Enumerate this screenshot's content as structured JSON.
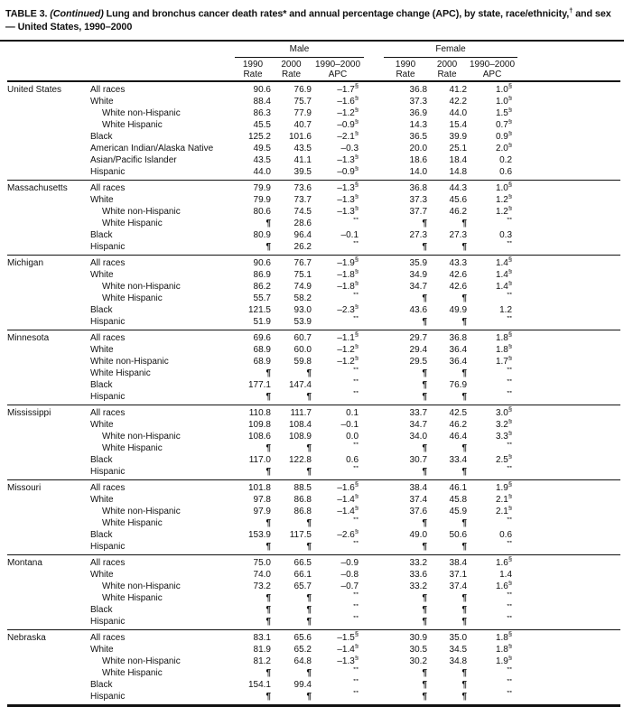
{
  "title": {
    "prefix": "TABLE 3. ",
    "continued": "(Continued)",
    "main": " Lung and bronchus cancer death rates* and annual percentage change (APC), by state, race/ethnicity,",
    "dagger": "†",
    "suffix": " and sex — United States, 1990–2000"
  },
  "columns": {
    "male": "Male",
    "female": "Female",
    "sub": [
      {
        "l1": "1990",
        "l2": "Rate"
      },
      {
        "l1": "2000",
        "l2": "Rate"
      },
      {
        "l1": "1990–2000",
        "l2": "APC"
      }
    ]
  },
  "symbols": {
    "suppressed": "¶",
    "not_calculated": "**",
    "significant": "§"
  },
  "states": [
    {
      "name": "United States",
      "rows": [
        {
          "label": "All races",
          "indent": false,
          "cells": [
            "90.6",
            "76.9",
            "–1.7§",
            "36.8",
            "41.2",
            "1.0§"
          ]
        },
        {
          "label": "White",
          "indent": false,
          "cells": [
            "88.4",
            "75.7",
            "–1.6§",
            "37.3",
            "42.2",
            "1.0§"
          ]
        },
        {
          "label": "White non-Hispanic",
          "indent": true,
          "cells": [
            "86.3",
            "77.9",
            "–1.2§",
            "36.9",
            "44.0",
            "1.5§"
          ]
        },
        {
          "label": "White Hispanic",
          "indent": true,
          "cells": [
            "45.5",
            "40.7",
            "–0.9§",
            "14.3",
            "15.4",
            "0.7§"
          ]
        },
        {
          "label": "Black",
          "indent": false,
          "cells": [
            "125.2",
            "101.6",
            "–2.1§",
            "36.5",
            "39.9",
            "0.9§"
          ]
        },
        {
          "label": "American Indian/Alaska Native",
          "indent": false,
          "cells": [
            "49.5",
            "43.5",
            "–0.3",
            "20.0",
            "25.1",
            "2.0§"
          ]
        },
        {
          "label": "Asian/Pacific Islander",
          "indent": false,
          "cells": [
            "43.5",
            "41.1",
            "–1.3§",
            "18.6",
            "18.4",
            "0.2"
          ]
        },
        {
          "label": "Hispanic",
          "indent": false,
          "cells": [
            "44.0",
            "39.5",
            "–0.9§",
            "14.0",
            "14.8",
            "0.6"
          ]
        }
      ]
    },
    {
      "name": "Massachusetts",
      "rows": [
        {
          "label": "All races",
          "indent": false,
          "cells": [
            "79.9",
            "73.6",
            "–1.3§",
            "36.8",
            "44.3",
            "1.0§"
          ]
        },
        {
          "label": "White",
          "indent": false,
          "cells": [
            "79.9",
            "73.7",
            "–1.3§",
            "37.3",
            "45.6",
            "1.2§"
          ]
        },
        {
          "label": "White non-Hispanic",
          "indent": true,
          "cells": [
            "80.6",
            "74.5",
            "–1.3§",
            "37.7",
            "46.2",
            "1.2§"
          ]
        },
        {
          "label": "White Hispanic",
          "indent": true,
          "cells": [
            "¶",
            "28.6",
            "**",
            "¶",
            "¶",
            "**"
          ]
        },
        {
          "label": "Black",
          "indent": false,
          "cells": [
            "80.9",
            "96.4",
            "–0.1",
            "27.3",
            "27.3",
            "0.3"
          ]
        },
        {
          "label": "Hispanic",
          "indent": false,
          "cells": [
            "¶",
            "26.2",
            "**",
            "¶",
            "¶",
            "**"
          ]
        }
      ]
    },
    {
      "name": "Michigan",
      "rows": [
        {
          "label": "All races",
          "indent": false,
          "cells": [
            "90.6",
            "76.7",
            "–1.9§",
            "35.9",
            "43.3",
            "1.4§"
          ]
        },
        {
          "label": "White",
          "indent": false,
          "cells": [
            "86.9",
            "75.1",
            "–1.8§",
            "34.9",
            "42.6",
            "1.4§"
          ]
        },
        {
          "label": "White non-Hispanic",
          "indent": true,
          "cells": [
            "86.2",
            "74.9",
            "–1.8§",
            "34.7",
            "42.6",
            "1.4§"
          ]
        },
        {
          "label": "White Hispanic",
          "indent": true,
          "cells": [
            "55.7",
            "58.2",
            "**",
            "¶",
            "¶",
            "**"
          ]
        },
        {
          "label": "Black",
          "indent": false,
          "cells": [
            "121.5",
            "93.0",
            "–2.3§",
            "43.6",
            "49.9",
            "1.2"
          ]
        },
        {
          "label": "Hispanic",
          "indent": false,
          "cells": [
            "51.9",
            "53.9",
            "**",
            "¶",
            "¶",
            "**"
          ]
        }
      ]
    },
    {
      "name": "Minnesota",
      "rows": [
        {
          "label": "All races",
          "indent": false,
          "cells": [
            "69.6",
            "60.7",
            "–1.1§",
            "29.7",
            "36.8",
            "1.8§"
          ]
        },
        {
          "label": "White",
          "indent": false,
          "cells": [
            "68.9",
            "60.0",
            "–1.2§",
            "29.4",
            "36.4",
            "1.8§"
          ]
        },
        {
          "label": "White non-Hispanic",
          "indent": false,
          "cells": [
            "68.9",
            "59.8",
            "–1.2§",
            "29.5",
            "36.4",
            "1.7§"
          ]
        },
        {
          "label": "White Hispanic",
          "indent": false,
          "cells": [
            "¶",
            "¶",
            "**",
            "¶",
            "¶",
            "**"
          ]
        },
        {
          "label": "Black",
          "indent": false,
          "cells": [
            "177.1",
            "147.4",
            "**",
            "¶",
            "76.9",
            "**"
          ]
        },
        {
          "label": "Hispanic",
          "indent": false,
          "cells": [
            "¶",
            "¶",
            "**",
            "¶",
            "¶",
            "**"
          ]
        }
      ]
    },
    {
      "name": "Mississippi",
      "rows": [
        {
          "label": "All races",
          "indent": false,
          "cells": [
            "110.8",
            "111.7",
            "0.1",
            "33.7",
            "42.5",
            "3.0§"
          ]
        },
        {
          "label": "White",
          "indent": false,
          "cells": [
            "109.8",
            "108.4",
            "–0.1",
            "34.7",
            "46.2",
            "3.2§"
          ]
        },
        {
          "label": "White non-Hispanic",
          "indent": true,
          "cells": [
            "108.6",
            "108.9",
            "0.0",
            "34.0",
            "46.4",
            "3.3§"
          ]
        },
        {
          "label": "White Hispanic",
          "indent": true,
          "cells": [
            "¶",
            "¶",
            "**",
            "¶",
            "¶",
            "**"
          ]
        },
        {
          "label": "Black",
          "indent": false,
          "cells": [
            "117.0",
            "122.8",
            "0.6",
            "30.7",
            "33.4",
            "2.5§"
          ]
        },
        {
          "label": "Hispanic",
          "indent": false,
          "cells": [
            "¶",
            "¶",
            "**",
            "¶",
            "¶",
            "**"
          ]
        }
      ]
    },
    {
      "name": "Missouri",
      "rows": [
        {
          "label": "All races",
          "indent": false,
          "cells": [
            "101.8",
            "88.5",
            "–1.6§",
            "38.4",
            "46.1",
            "1.9§"
          ]
        },
        {
          "label": "White",
          "indent": false,
          "cells": [
            "97.8",
            "86.8",
            "–1.4§",
            "37.4",
            "45.8",
            "2.1§"
          ]
        },
        {
          "label": "White non-Hispanic",
          "indent": true,
          "cells": [
            "97.9",
            "86.8",
            "–1.4§",
            "37.6",
            "45.9",
            "2.1§"
          ]
        },
        {
          "label": "White Hispanic",
          "indent": true,
          "cells": [
            "¶",
            "¶",
            "**",
            "¶",
            "¶",
            "**"
          ]
        },
        {
          "label": "Black",
          "indent": false,
          "cells": [
            "153.9",
            "117.5",
            "–2.6§",
            "49.0",
            "50.6",
            "0.6"
          ]
        },
        {
          "label": "Hispanic",
          "indent": false,
          "cells": [
            "¶",
            "¶",
            "**",
            "¶",
            "¶",
            "**"
          ]
        }
      ]
    },
    {
      "name": "Montana",
      "rows": [
        {
          "label": "All races",
          "indent": false,
          "cells": [
            "75.0",
            "66.5",
            "–0.9",
            "33.2",
            "38.4",
            "1.6§"
          ]
        },
        {
          "label": "White",
          "indent": false,
          "cells": [
            "74.0",
            "66.1",
            "–0.8",
            "33.6",
            "37.1",
            "1.4"
          ]
        },
        {
          "label": "White non-Hispanic",
          "indent": true,
          "cells": [
            "73.2",
            "65.7",
            "–0.7",
            "33.2",
            "37.4",
            "1.6§"
          ]
        },
        {
          "label": "White Hispanic",
          "indent": true,
          "cells": [
            "¶",
            "¶",
            "**",
            "¶",
            "¶",
            "**"
          ]
        },
        {
          "label": "Black",
          "indent": false,
          "cells": [
            "¶",
            "¶",
            "**",
            "¶",
            "¶",
            "**"
          ]
        },
        {
          "label": "Hispanic",
          "indent": false,
          "cells": [
            "¶",
            "¶",
            "**",
            "¶",
            "¶",
            "**"
          ]
        }
      ]
    },
    {
      "name": "Nebraska",
      "rows": [
        {
          "label": "All races",
          "indent": false,
          "cells": [
            "83.1",
            "65.6",
            "–1.5§",
            "30.9",
            "35.0",
            "1.8§"
          ]
        },
        {
          "label": "White",
          "indent": false,
          "cells": [
            "81.9",
            "65.2",
            "–1.4§",
            "30.5",
            "34.5",
            "1.8§"
          ]
        },
        {
          "label": "White non-Hispanic",
          "indent": true,
          "cells": [
            "81.2",
            "64.8",
            "–1.3§",
            "30.2",
            "34.8",
            "1.9§"
          ]
        },
        {
          "label": "White Hispanic",
          "indent": true,
          "cells": [
            "¶",
            "¶",
            "**",
            "¶",
            "¶",
            "**"
          ]
        },
        {
          "label": "Black",
          "indent": false,
          "cells": [
            "154.1",
            "99.4",
            "**",
            "¶",
            "¶",
            "**"
          ]
        },
        {
          "label": "Hispanic",
          "indent": false,
          "cells": [
            "¶",
            "¶",
            "**",
            "¶",
            "¶",
            "**"
          ]
        }
      ]
    }
  ]
}
